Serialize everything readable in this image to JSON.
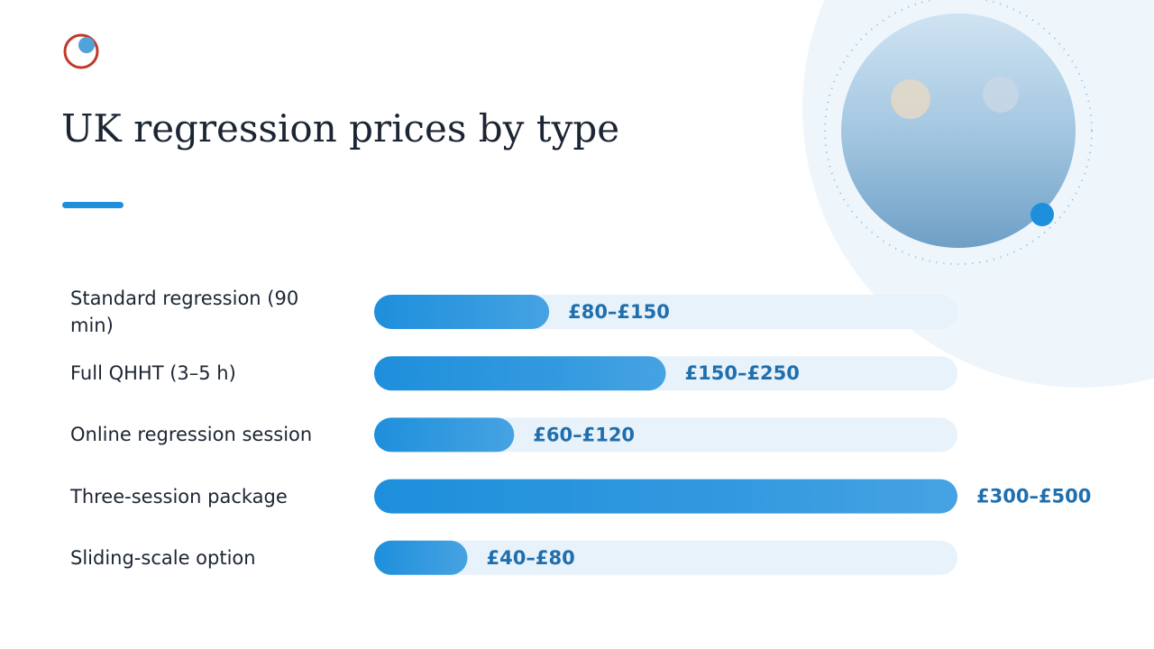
{
  "title": "UK regression prices by type",
  "chart_data": {
    "type": "bar",
    "orientation": "horizontal",
    "categories": [
      "Standard regression (90 min)",
      "Full QHHT (3–5 h)",
      "Online regression session",
      "Three-session package",
      "Sliding-scale option"
    ],
    "low": [
      80,
      150,
      60,
      300,
      40
    ],
    "values": [
      150,
      250,
      120,
      500,
      80
    ],
    "value_labels": [
      "£80–£150",
      "£150–£250",
      "£60–£120",
      "£300–£500",
      "£40–£80"
    ],
    "color": "#1e8fdc",
    "xlim": [
      0,
      500
    ]
  }
}
